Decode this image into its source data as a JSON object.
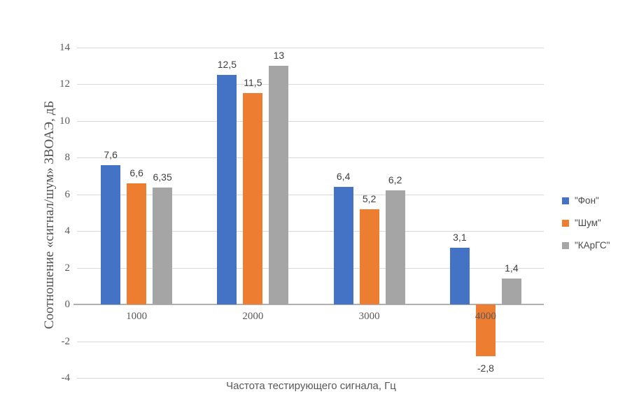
{
  "chart_data": {
    "type": "bar",
    "title": "",
    "categories": [
      "1000",
      "2000",
      "3000",
      "4000"
    ],
    "series": [
      {
        "name": "\"Фон\"",
        "slug": "fon",
        "color": "#4472C4",
        "values": [
          7.6,
          12.5,
          6.4,
          3.1
        ],
        "labels": [
          "7,6",
          "12,5",
          "6,4",
          "3,1"
        ]
      },
      {
        "name": "\"Шум\"",
        "slug": "shum",
        "color": "#ED7D31",
        "values": [
          6.6,
          11.5,
          5.2,
          -2.8
        ],
        "labels": [
          "6,6",
          "11,5",
          "5,2",
          "-2,8"
        ]
      },
      {
        "name": "\"КАрГС\"",
        "slug": "kargs",
        "color": "#A5A5A5",
        "values": [
          6.35,
          13,
          6.2,
          1.4
        ],
        "labels": [
          "6,35",
          "13",
          "6,2",
          "1,4"
        ]
      }
    ],
    "xlabel": "Частота тестирующего сигнала, Гц",
    "ylabel": "Соотношение «сигнал/шум» ЗВОАЭ, дБ",
    "ylim": [
      -4,
      14
    ],
    "yticks": [
      14,
      12,
      10,
      8,
      6,
      4,
      2,
      0,
      -2,
      -4
    ],
    "ytick_labels": [
      "14",
      "12",
      "10",
      "8",
      "6",
      "4",
      "2",
      "0",
      "-2",
      "-4"
    ],
    "grid": true,
    "legend_position": "right",
    "colors": {
      "gridline": "#D9D9D9",
      "axis_line": "#B0B0B0",
      "tick_text": "#595959",
      "data_label_text": "#3F3F3F"
    }
  }
}
